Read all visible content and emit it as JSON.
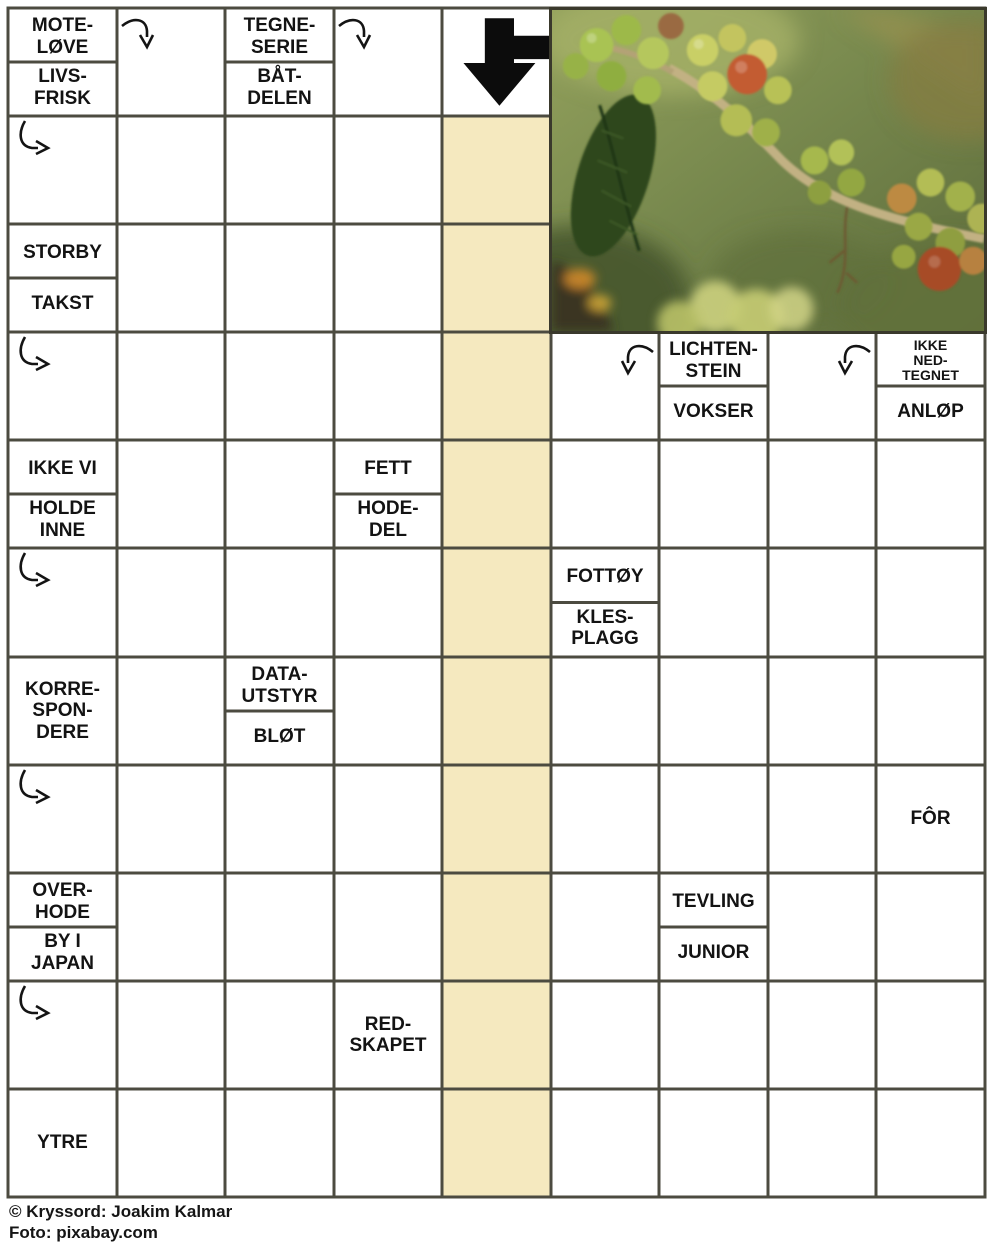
{
  "puzzle": {
    "kind": "crossword",
    "language": "norwegian"
  },
  "colors": {
    "background": "#ffffff",
    "grid_line": "#4c4b40",
    "highlight": "#f5e9bf",
    "clue_text": "#131313",
    "arrow": "#141414"
  },
  "grid": {
    "cols": 9,
    "rows": 11,
    "highlight_col": 4,
    "highlight_row_start": 1,
    "highlight_row_end": 10,
    "photo_region": {
      "row_start": 0,
      "row_end": 2,
      "col_start": 5,
      "col_end": 8
    },
    "cells": [
      {
        "r": 0,
        "c": 0,
        "kind": "split",
        "top": "MOTE-\nLØVE",
        "bottom": "LIVS-\nFRISK"
      },
      {
        "r": 0,
        "c": 1,
        "kind": "arrow",
        "arrow": "from-left-curve-down"
      },
      {
        "r": 0,
        "c": 2,
        "kind": "split",
        "top": "TEGNE-\nSERIE",
        "bottom": "BÅT-\nDELEN"
      },
      {
        "r": 0,
        "c": 3,
        "kind": "arrow",
        "arrow": "from-left-curve-down"
      },
      {
        "r": 0,
        "c": 4,
        "kind": "big-arrow"
      },
      {
        "r": 1,
        "c": 0,
        "kind": "arrow",
        "arrow": "from-top-curve-right"
      },
      {
        "r": 2,
        "c": 0,
        "kind": "split",
        "top": "STORBY",
        "bottom": "TAKST"
      },
      {
        "r": 3,
        "c": 0,
        "kind": "arrow",
        "arrow": "from-top-curve-right"
      },
      {
        "r": 3,
        "c": 5,
        "kind": "arrow",
        "arrow": "from-right-curve-down"
      },
      {
        "r": 3,
        "c": 6,
        "kind": "split",
        "top": "LICHTEN-\nSTEIN",
        "bottom": "VOKSER"
      },
      {
        "r": 3,
        "c": 7,
        "kind": "arrow",
        "arrow": "from-right-curve-down"
      },
      {
        "r": 3,
        "c": 8,
        "kind": "split",
        "top": "IKKE\nNED-\nTEGNET",
        "bottom": "ANLØP",
        "top_small": true
      },
      {
        "r": 4,
        "c": 0,
        "kind": "split",
        "top": "IKKE VI",
        "bottom": "HOLDE\nINNE"
      },
      {
        "r": 4,
        "c": 3,
        "kind": "split",
        "top": "FETT",
        "bottom": "HODE-\nDEL"
      },
      {
        "r": 5,
        "c": 0,
        "kind": "arrow",
        "arrow": "from-top-curve-right"
      },
      {
        "r": 5,
        "c": 5,
        "kind": "split",
        "top": "FOTTØY",
        "bottom": "KLES-\nPLAGG"
      },
      {
        "r": 6,
        "c": 0,
        "kind": "single",
        "text": "KORRE-\nSPON-\nDERE"
      },
      {
        "r": 6,
        "c": 2,
        "kind": "split",
        "top": "DATA-\nUTSTYR",
        "bottom": "BLØT"
      },
      {
        "r": 7,
        "c": 0,
        "kind": "arrow",
        "arrow": "from-top-curve-right"
      },
      {
        "r": 7,
        "c": 8,
        "kind": "single",
        "text": "FÔR"
      },
      {
        "r": 8,
        "c": 0,
        "kind": "split",
        "top": "OVER-\nHODE",
        "bottom": "BY I\nJAPAN"
      },
      {
        "r": 8,
        "c": 6,
        "kind": "split",
        "top": "TEVLING",
        "bottom": "JUNIOR"
      },
      {
        "r": 9,
        "c": 0,
        "kind": "arrow",
        "arrow": "from-top-curve-right"
      },
      {
        "r": 9,
        "c": 3,
        "kind": "single",
        "text": "RED-\nSKAPET"
      },
      {
        "r": 10,
        "c": 0,
        "kind": "single",
        "text": "YTRE"
      }
    ]
  },
  "photo": {
    "description": "coffee berries on a branch"
  },
  "credits": {
    "line1": "© Kryssord: Joakim Kalmar",
    "line2": "Foto: pixabay.com"
  }
}
